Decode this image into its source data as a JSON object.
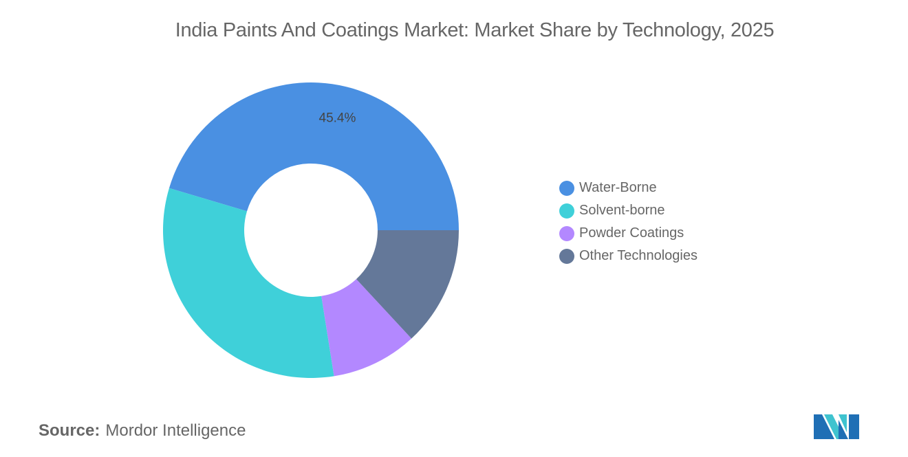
{
  "title": "India Paints And Coatings Market: Market Share by Technology, 2025",
  "chart_data": {
    "type": "pie",
    "variant": "donut",
    "title": "India Paints And Coatings Market: Market Share by Technology, 2025",
    "categories": [
      "Water-Borne",
      "Solvent-borne",
      "Powder Coatings",
      "Other Technologies"
    ],
    "values": [
      45.4,
      32.1,
      9.4,
      13.1
    ],
    "colors": [
      "#4a90e2",
      "#3fd0d9",
      "#b388ff",
      "#647899"
    ],
    "data_labels": [
      "45.4%",
      "",
      "",
      ""
    ],
    "legend_position": "right"
  },
  "source": {
    "label": "Source:",
    "value": "Mordor Intelligence"
  },
  "logo_text": "Mordor Intelligence"
}
